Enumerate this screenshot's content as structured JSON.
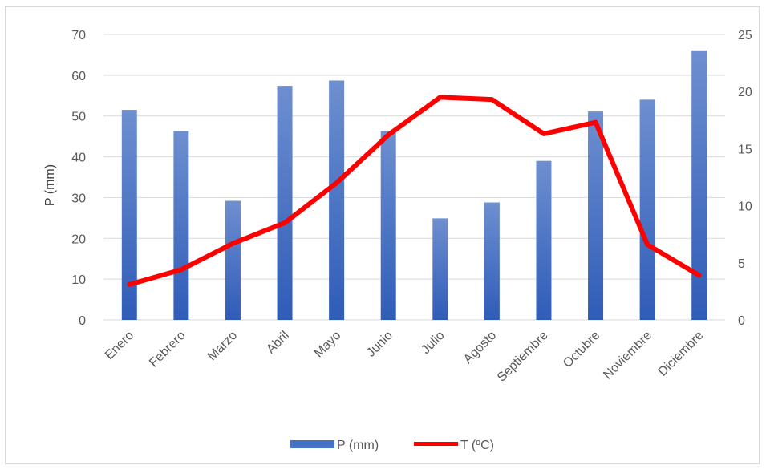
{
  "chart_data": {
    "type": "bar",
    "title": "",
    "categories": [
      "Enero",
      "Febrero",
      "Marzo",
      "Abril",
      "Mayo",
      "Junio",
      "Julio",
      "Agosto",
      "Septiembre",
      "Octubre",
      "Noviembre",
      "Diciembre"
    ],
    "series": [
      {
        "name": "P (mm)",
        "type": "bar",
        "axis": "left",
        "color": "#4472c4",
        "values": [
          51.5,
          46.3,
          29.2,
          57.4,
          58.7,
          46.3,
          24.9,
          28.8,
          39.0,
          51.1,
          54.0,
          66.1
        ]
      },
      {
        "name": "T (ºC)",
        "type": "line",
        "axis": "right",
        "color": "#ff0000",
        "values": [
          3.1,
          4.4,
          6.7,
          8.5,
          12.0,
          16.2,
          19.5,
          19.3,
          16.3,
          17.3,
          6.6,
          3.9
        ]
      }
    ],
    "ylabel": "P (mm)",
    "xlabel": "",
    "y_left": {
      "lim": [
        0,
        70
      ],
      "ticks": [
        "0",
        "10",
        "20",
        "30",
        "40",
        "50",
        "60",
        "70"
      ]
    },
    "y_right": {
      "lim": [
        0,
        25
      ],
      "ticks": [
        "0",
        "5",
        "10",
        "15",
        "20",
        "25"
      ]
    },
    "grid": true,
    "legend": "bottom"
  }
}
